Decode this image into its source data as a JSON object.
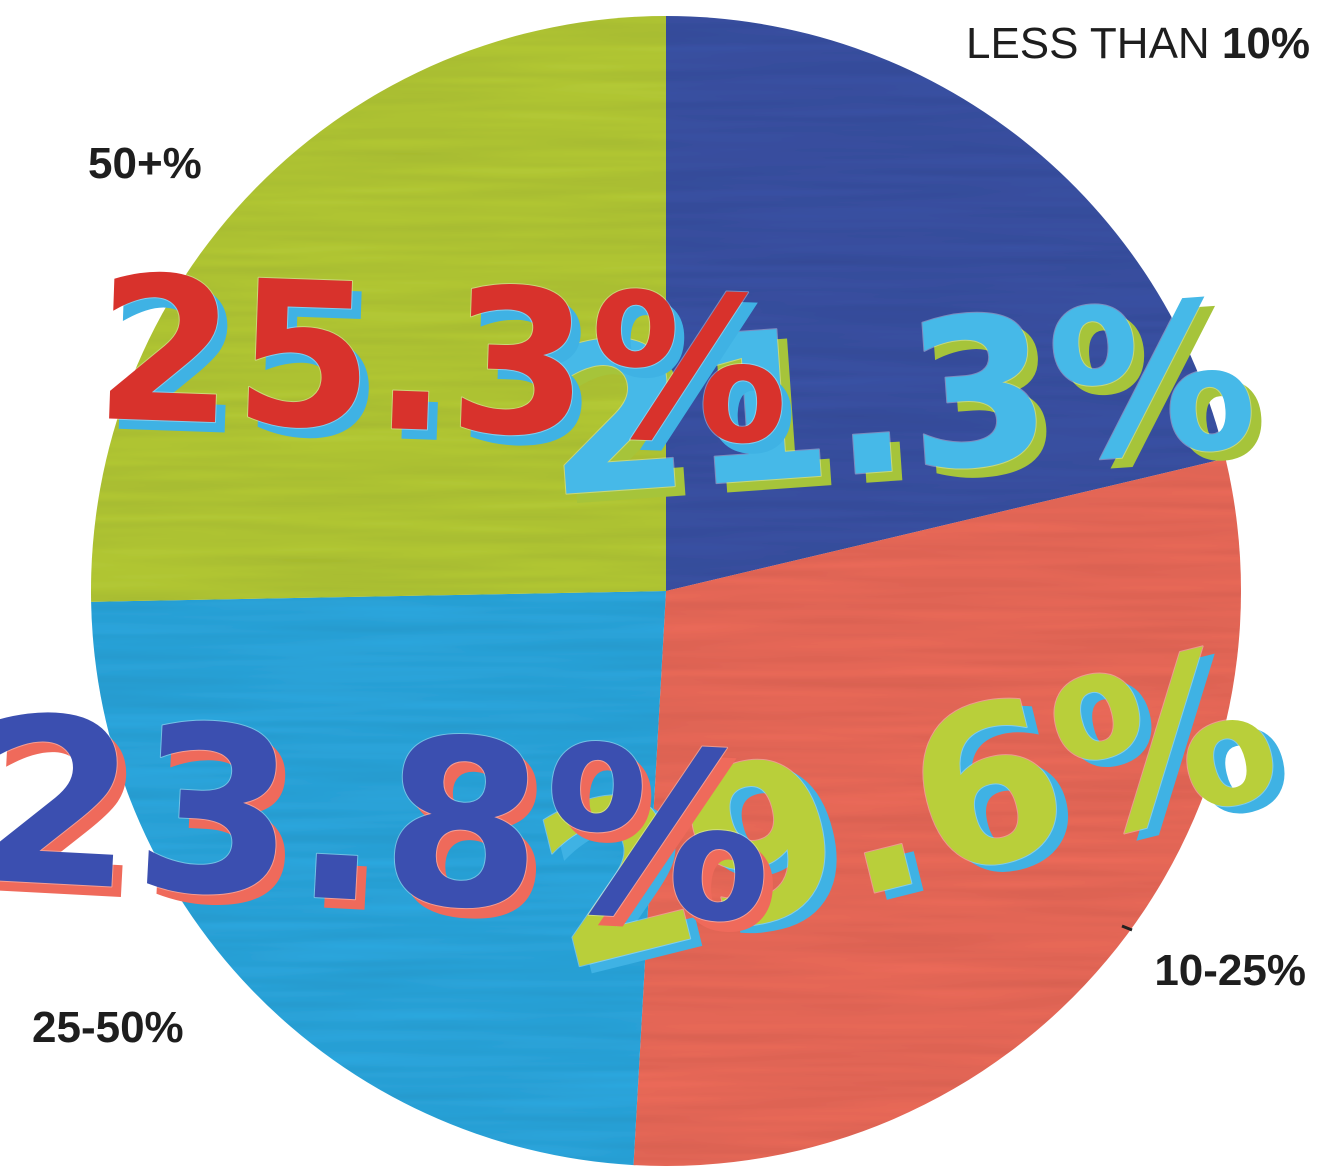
{
  "chart_data": {
    "type": "pie",
    "unit": "%",
    "slices": [
      {
        "label_prefix": "LESS THAN ",
        "label_strong": "10%",
        "value": 21.3,
        "value_text": "21.3%",
        "color": "#3a52a6",
        "value_color": "#46b9e8",
        "shadow_color": "#a6c43a"
      },
      {
        "label_prefix": "",
        "label_strong": "10-25%",
        "value": 29.6,
        "value_text": "29.6%",
        "color": "#ee6b5a",
        "value_color": "#b9cf3a",
        "shadow_color": "#3fb2e4"
      },
      {
        "label_prefix": "",
        "label_strong": "25-50%",
        "value": 23.8,
        "value_text": "23.8%",
        "color": "#2ba9e1",
        "value_color": "#3b4fb0",
        "shadow_color": "#ef6a5b"
      },
      {
        "label_prefix": "",
        "label_strong": "50+%",
        "value": 25.3,
        "value_text": "25.3%",
        "color": "#b6cc35",
        "value_color": "#d8322c",
        "shadow_color": "#3fb2e4"
      }
    ],
    "start_angle_deg": 0,
    "direction": "clockwise",
    "legend": "outside-labels"
  }
}
